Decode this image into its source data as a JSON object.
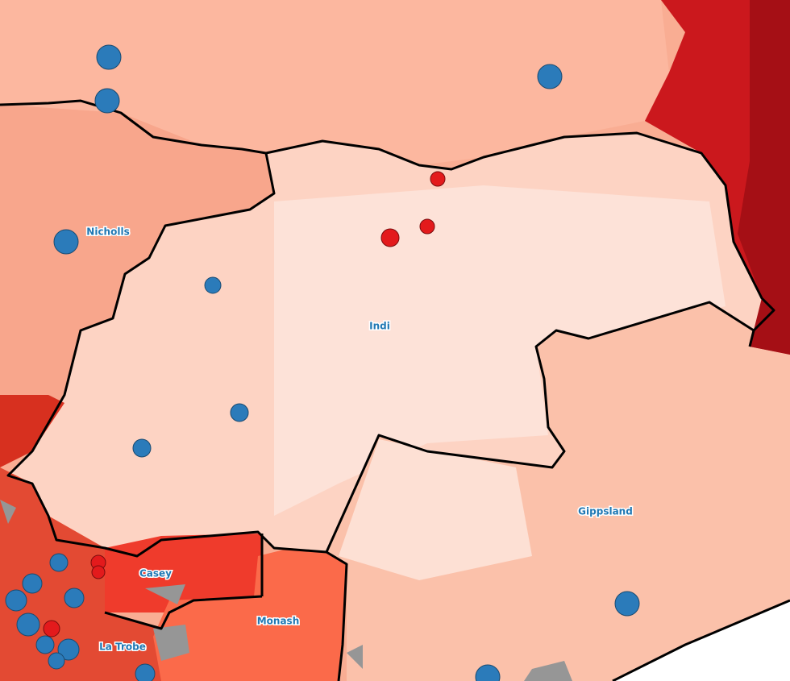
{
  "electorates": [
    "Nicholls",
    "Indi",
    "Gippsland",
    "Casey",
    "Monash",
    "La Trobe"
  ]
}
